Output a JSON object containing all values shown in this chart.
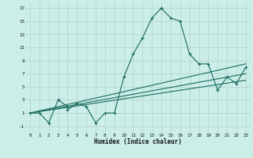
{
  "xlabel": "Humidex (Indice chaleur)",
  "background_color": "#cceee8",
  "grid_color": "#b8d8d4",
  "line_color": "#1a6b5e",
  "xlim": [
    -0.5,
    23.5
  ],
  "ylim": [
    -2,
    18
  ],
  "xticks": [
    0,
    1,
    2,
    3,
    4,
    5,
    6,
    7,
    8,
    9,
    10,
    11,
    12,
    13,
    14,
    15,
    16,
    17,
    18,
    19,
    20,
    21,
    22,
    23
  ],
  "yticks": [
    -1,
    1,
    3,
    5,
    7,
    9,
    11,
    13,
    15,
    17
  ],
  "series": [
    [
      0,
      1
    ],
    [
      1,
      1
    ],
    [
      2,
      -0.5
    ],
    [
      3,
      3
    ],
    [
      4,
      2
    ],
    [
      4,
      1.5
    ],
    [
      5,
      2.5
    ],
    [
      6,
      2
    ],
    [
      7,
      -0.5
    ],
    [
      8,
      1
    ],
    [
      9,
      1
    ],
    [
      10,
      6.5
    ],
    [
      11,
      10
    ],
    [
      12,
      12.5
    ],
    [
      13,
      15.5
    ],
    [
      14,
      17
    ],
    [
      15,
      15.5
    ],
    [
      16,
      15
    ],
    [
      17,
      10
    ],
    [
      18,
      8.5
    ],
    [
      19,
      8.5
    ],
    [
      20,
      4.5
    ],
    [
      21,
      6.5
    ],
    [
      22,
      5.5
    ],
    [
      23,
      8
    ]
  ],
  "line1": [
    [
      0,
      1
    ],
    [
      23,
      8.5
    ]
  ],
  "line2": [
    [
      0,
      1
    ],
    [
      23,
      7.0
    ]
  ],
  "line3": [
    [
      0,
      1
    ],
    [
      23,
      6.0
    ]
  ]
}
